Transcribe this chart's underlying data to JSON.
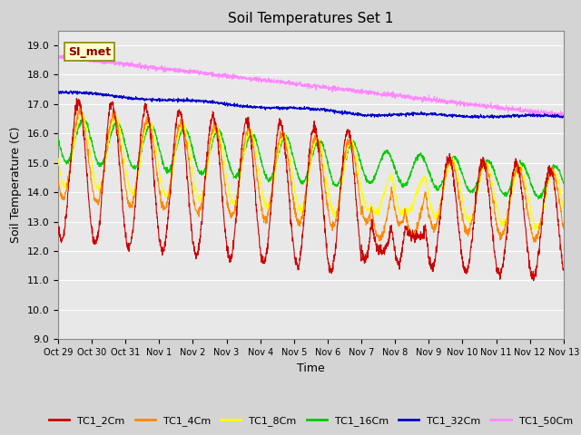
{
  "title": "Soil Temperatures Set 1",
  "xlabel": "Time",
  "ylabel": "Soil Temperature (C)",
  "ylim": [
    9.0,
    19.5
  ],
  "yticks": [
    9.0,
    10.0,
    11.0,
    12.0,
    13.0,
    14.0,
    15.0,
    16.0,
    17.0,
    18.0,
    19.0
  ],
  "xlim": [
    0,
    15
  ],
  "colors": {
    "TC1_2Cm": "#cc0000",
    "TC1_4Cm": "#ff8800",
    "TC1_8Cm": "#ffff00",
    "TC1_16Cm": "#00cc00",
    "TC1_32Cm": "#0000cc",
    "TC1_50Cm": "#ff88ff"
  },
  "xtick_labels": [
    "Oct 29",
    "Oct 30",
    "Oct 31",
    "Nov 1",
    "Nov 2",
    "Nov 3",
    "Nov 4",
    "Nov 5",
    "Nov 6",
    "Nov 7",
    "Nov 8",
    "Nov 9",
    "Nov 10",
    "Nov 11",
    "Nov 12",
    "Nov 13"
  ],
  "annotation_text": "SI_met",
  "background_color": "#d4d4d4",
  "plot_bg_color": "#e8e8e8",
  "grid_color": "#ffffff",
  "title_fontsize": 11,
  "axis_label_fontsize": 9,
  "tick_fontsize": 8,
  "legend_fontsize": 8
}
